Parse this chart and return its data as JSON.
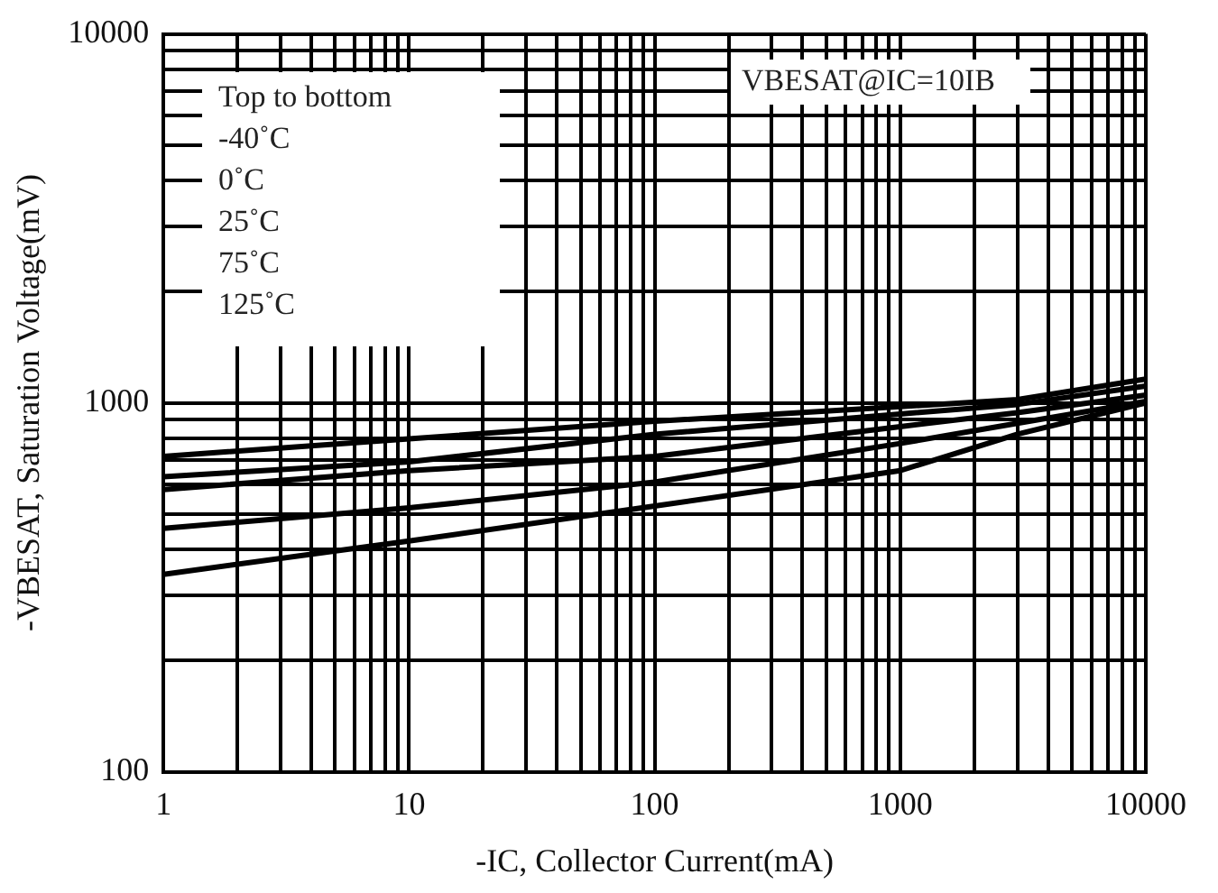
{
  "chart_data": {
    "type": "line",
    "xlabel": "-IC, Collector Current(mA)",
    "ylabel": "-VBESAT, Saturation Voltage(mV)",
    "log": "xy",
    "grid": true,
    "legend": false,
    "marker": "none",
    "line_style": "solid",
    "x": [
      1,
      10,
      100,
      1000,
      3000,
      10000
    ],
    "xlim": [
      1,
      10000
    ],
    "ylim": [
      100,
      10000
    ],
    "xticks": [
      1,
      {
        "value": 2,
        "label": null
      },
      {
        "value": 3,
        "label": null
      },
      {
        "value": 4,
        "label": null
      },
      {
        "value": 5,
        "label": null
      },
      {
        "value": 6,
        "label": null
      },
      {
        "value": 7,
        "label": null
      },
      {
        "value": 8,
        "label": null
      },
      {
        "value": 9,
        "label": null
      },
      10,
      {
        "value": 20,
        "label": null
      },
      {
        "value": 30,
        "label": null
      },
      {
        "value": 40,
        "label": null
      },
      {
        "value": 50,
        "label": null
      },
      {
        "value": 60,
        "label": null
      },
      {
        "value": 70,
        "label": null
      },
      {
        "value": 80,
        "label": null
      },
      {
        "value": 90,
        "label": null
      },
      100,
      {
        "value": 200,
        "label": null
      },
      {
        "value": 300,
        "label": null
      },
      {
        "value": 400,
        "label": null
      },
      {
        "value": 500,
        "label": null
      },
      {
        "value": 600,
        "label": null
      },
      {
        "value": 700,
        "label": null
      },
      {
        "value": 800,
        "label": null
      },
      {
        "value": 900,
        "label": null
      },
      1000,
      {
        "value": 2000,
        "label": null
      },
      {
        "value": 3000,
        "label": null
      },
      {
        "value": 4000,
        "label": null
      },
      {
        "value": 5000,
        "label": null
      },
      {
        "value": 6000,
        "label": null
      },
      {
        "value": 7000,
        "label": null
      },
      {
        "value": 8000,
        "label": null
      },
      {
        "value": 9000,
        "label": null
      },
      10000
    ],
    "yticks": [
      100,
      {
        "value": 200,
        "label": null
      },
      {
        "value": 300,
        "label": null
      },
      {
        "value": 400,
        "label": null
      },
      {
        "value": 500,
        "label": null
      },
      {
        "value": 600,
        "label": null
      },
      {
        "value": 700,
        "label": null
      },
      {
        "value": 800,
        "label": null
      },
      {
        "value": 900,
        "label": null
      },
      1000,
      {
        "value": 2000,
        "label": null
      },
      {
        "value": 3000,
        "label": null
      },
      {
        "value": 4000,
        "label": null
      },
      {
        "value": 5000,
        "label": null
      },
      {
        "value": 6000,
        "label": null
      },
      {
        "value": 7000,
        "label": null
      },
      {
        "value": 8000,
        "label": null
      },
      {
        "value": 9000,
        "label": null
      },
      10000
    ],
    "series": [
      {
        "color": "#000000",
        "values": [
          716,
          799,
          891,
          977,
          1020,
          1160
        ]
      },
      {
        "color": "#000000",
        "values": [
          631,
          692,
          822,
          933,
          990,
          1110
        ]
      },
      {
        "color": "#000000",
        "values": [
          582,
          655,
          716,
          862,
          940,
          1050
        ]
      },
      {
        "color": "#000000",
        "values": [
          457,
          519,
          610,
          776,
          880,
          1010
        ]
      },
      {
        "color": "#000000",
        "values": [
          343,
          422,
          525,
          655,
          822,
          1000
        ]
      }
    ],
    "annotations": [
      "Top to bottom",
      "-40˚C",
      "0˚C",
      "25˚C",
      "75˚C",
      "125˚C",
      "VBESAT@IC=10IB"
    ]
  }
}
